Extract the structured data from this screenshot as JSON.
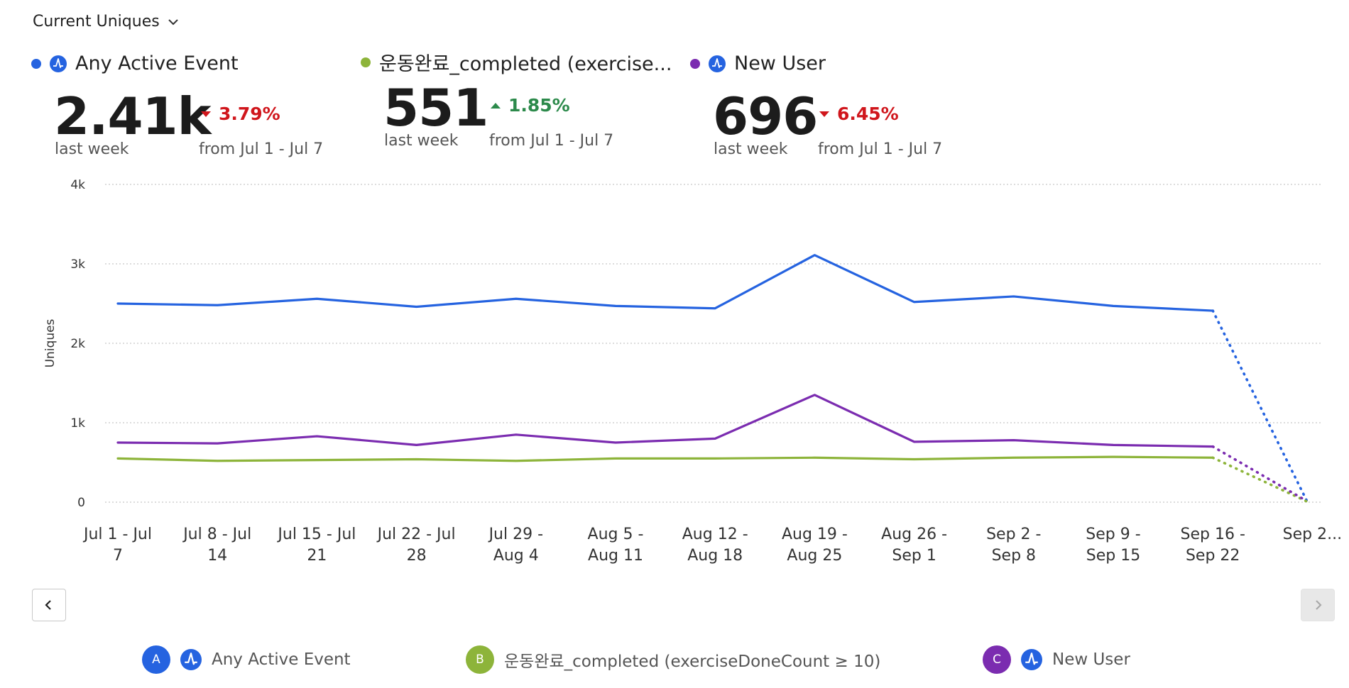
{
  "header": {
    "dropdown_label": "Current Uniques"
  },
  "metrics": [
    {
      "name": "Any Active Event",
      "value": "2.41k",
      "period_label": "last week",
      "change": "3.79%",
      "direction": "down",
      "comparison": "from Jul 1 - Jul 7",
      "color": "#2563e0"
    },
    {
      "name": "운동완료_completed (exercise...",
      "value": "551",
      "period_label": "last week",
      "change": "1.85%",
      "direction": "up",
      "comparison": "from Jul 1 - Jul 7",
      "color": "#8db43a"
    },
    {
      "name": "New User",
      "value": "696",
      "period_label": "last week",
      "change": "6.45%",
      "direction": "down",
      "comparison": "from Jul 1 - Jul 7",
      "color": "#7b2cb0"
    }
  ],
  "legend": [
    {
      "badge": "A",
      "label": "Any Active Event",
      "color": "#2563e0",
      "icon": "amplitude-icon"
    },
    {
      "badge": "B",
      "label": "운동완료_completed (exerciseDoneCount ≥ 10)",
      "color": "#8db43a",
      "icon": ""
    },
    {
      "badge": "C",
      "label": "New User",
      "color": "#7b2cb0",
      "icon": "amplitude-icon"
    }
  ],
  "colors": {
    "down": "#d0161c",
    "up": "#2c8a4b",
    "grid": "#c7c7c7"
  },
  "chart_data": {
    "type": "line",
    "ylabel": "Uniques",
    "ylim": [
      0,
      4000
    ],
    "yticks": [
      {
        "value": 0,
        "label": "0"
      },
      {
        "value": 1000,
        "label": "1k"
      },
      {
        "value": 2000,
        "label": "2k"
      },
      {
        "value": 3000,
        "label": "3k"
      },
      {
        "value": 4000,
        "label": "4k"
      }
    ],
    "grid": true,
    "incomplete_last_point": true,
    "categories": [
      [
        "Jul 1 - Jul",
        "7"
      ],
      [
        "Jul 8 - Jul",
        "14"
      ],
      [
        "Jul 15 - Jul",
        "21"
      ],
      [
        "Jul 22 - Jul",
        "28"
      ],
      [
        "Jul 29 -",
        "Aug 4"
      ],
      [
        "Aug 5 -",
        "Aug 11"
      ],
      [
        "Aug 12 -",
        "Aug 18"
      ],
      [
        "Aug 19 -",
        "Aug 25"
      ],
      [
        "Aug 26 -",
        "Sep 1"
      ],
      [
        "Sep 2 -",
        "Sep 8"
      ],
      [
        "Sep 9 -",
        "Sep 15"
      ],
      [
        "Sep 16 -",
        "Sep 22"
      ],
      [
        "Sep 2..."
      ]
    ],
    "series": [
      {
        "name": "Any Active Event",
        "color": "#2563e0",
        "values": [
          2500,
          2480,
          2560,
          2460,
          2560,
          2470,
          2440,
          3110,
          2520,
          2590,
          2470,
          2410,
          20
        ]
      },
      {
        "name": "운동완료_completed (exerciseDoneCount ≥ 10)",
        "color": "#8db43a",
        "values": [
          550,
          520,
          530,
          540,
          520,
          550,
          550,
          560,
          540,
          560,
          570,
          560,
          10
        ]
      },
      {
        "name": "New User",
        "color": "#7b2cb0",
        "values": [
          750,
          740,
          830,
          720,
          850,
          750,
          800,
          1350,
          760,
          780,
          720,
          700,
          15
        ]
      }
    ]
  }
}
